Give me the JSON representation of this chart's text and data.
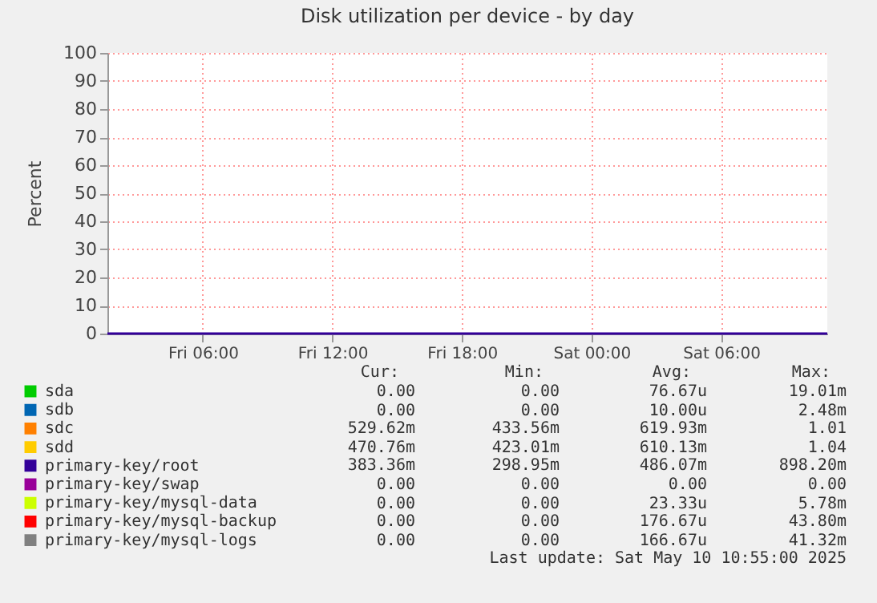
{
  "chart_data": {
    "type": "line",
    "title": "Disk utilization per device - by day",
    "ylabel": "Percent",
    "x": [
      "2025-05-09T01:35",
      "2025-05-10T10:55"
    ],
    "xlim": [
      "2025-05-09T01:35",
      "2025-05-10T10:55"
    ],
    "xticks": [
      {
        "value": "2025-05-09T06:00",
        "label": "Fri 06:00"
      },
      {
        "value": "2025-05-09T12:00",
        "label": "Fri 12:00"
      },
      {
        "value": "2025-05-09T18:00",
        "label": "Fri 18:00"
      },
      {
        "value": "2025-05-10T00:00",
        "label": "Sat 00:00"
      },
      {
        "value": "2025-05-10T06:00",
        "label": "Sat 06:00"
      }
    ],
    "ylim": [
      0,
      100
    ],
    "yticks": [
      0,
      10,
      20,
      30,
      40,
      50,
      60,
      70,
      80,
      90,
      100
    ],
    "grid": true,
    "legend": "bottom left",
    "line_style": "solid",
    "series": [
      {
        "name": "sda",
        "color": "#00cc00",
        "values": [
          null,
          null
        ]
      },
      {
        "name": "sdb",
        "color": "#0066b3",
        "values": [
          null,
          null
        ]
      },
      {
        "name": "sdc",
        "color": "#ff8000",
        "values": [
          null,
          null
        ]
      },
      {
        "name": "sdd",
        "color": "#ffcc00",
        "values": [
          null,
          null
        ]
      },
      {
        "name": "primary-key/root",
        "color": "#330099",
        "values": [
          0,
          0
        ]
      },
      {
        "name": "primary-key/swap",
        "color": "#990099",
        "values": [
          null,
          null
        ]
      },
      {
        "name": "primary-key/mysql-data",
        "color": "#ccff00",
        "values": [
          null,
          null
        ]
      },
      {
        "name": "primary-key/mysql-backup",
        "color": "#ff0000",
        "values": [
          null,
          null
        ]
      },
      {
        "name": "primary-key/mysql-logs",
        "color": "#808080",
        "values": [
          null,
          null
        ]
      }
    ],
    "annotations": [
      "Cur:",
      "Min:",
      "Avg:",
      "Max:",
      "0.00",
      "0.00",
      "76.67u",
      "19.01m",
      "0.00",
      "0.00",
      "10.00u",
      "2.48m",
      "529.62m",
      "433.56m",
      "619.93m",
      "1.01",
      "470.76m",
      "423.01m",
      "610.13m",
      "1.04",
      "383.36m",
      "298.95m",
      "486.07m",
      "898.20m",
      "0.00",
      "0.00",
      "0.00",
      "0.00",
      "0.00",
      "0.00",
      "23.33u",
      "5.78m",
      "0.00",
      "0.00",
      "176.67u",
      "43.80m",
      "0.00",
      "0.00",
      "166.67u",
      "41.32m",
      "Last update: Sat May 10 10:55:00 2025"
    ]
  }
}
